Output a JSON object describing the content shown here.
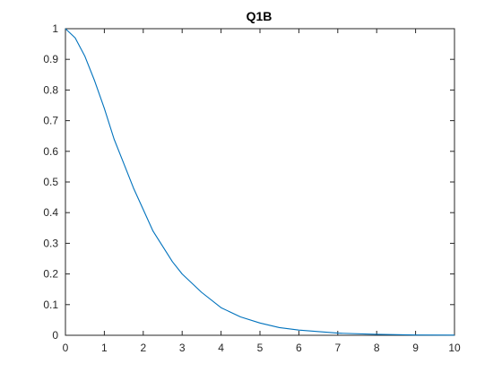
{
  "chart_data": {
    "type": "line",
    "title": "Q1B",
    "xlabel": "",
    "ylabel": "",
    "xlim": [
      0,
      10
    ],
    "ylim": [
      0,
      1
    ],
    "x_ticks": [
      "0",
      "1",
      "2",
      "3",
      "4",
      "5",
      "6",
      "7",
      "8",
      "9",
      "10"
    ],
    "y_ticks": [
      "0",
      "0.1",
      "0.2",
      "0.3",
      "0.4",
      "0.5",
      "0.6",
      "0.7",
      "0.8",
      "0.9",
      "1"
    ],
    "grid": false,
    "series": [
      {
        "color": "#0072bd",
        "x": [
          0,
          0.25,
          0.5,
          0.75,
          1,
          1.25,
          1.5,
          1.75,
          2,
          2.25,
          2.5,
          2.75,
          3,
          3.5,
          4,
          4.5,
          5,
          5.5,
          6,
          7,
          8,
          9,
          10
        ],
        "y": [
          1,
          0.97,
          0.91,
          0.83,
          0.74,
          0.64,
          0.56,
          0.48,
          0.41,
          0.34,
          0.29,
          0.24,
          0.2,
          0.14,
          0.09,
          0.06,
          0.04,
          0.025,
          0.017,
          0.007,
          0.003,
          0.001,
          0.0005
        ]
      }
    ]
  }
}
